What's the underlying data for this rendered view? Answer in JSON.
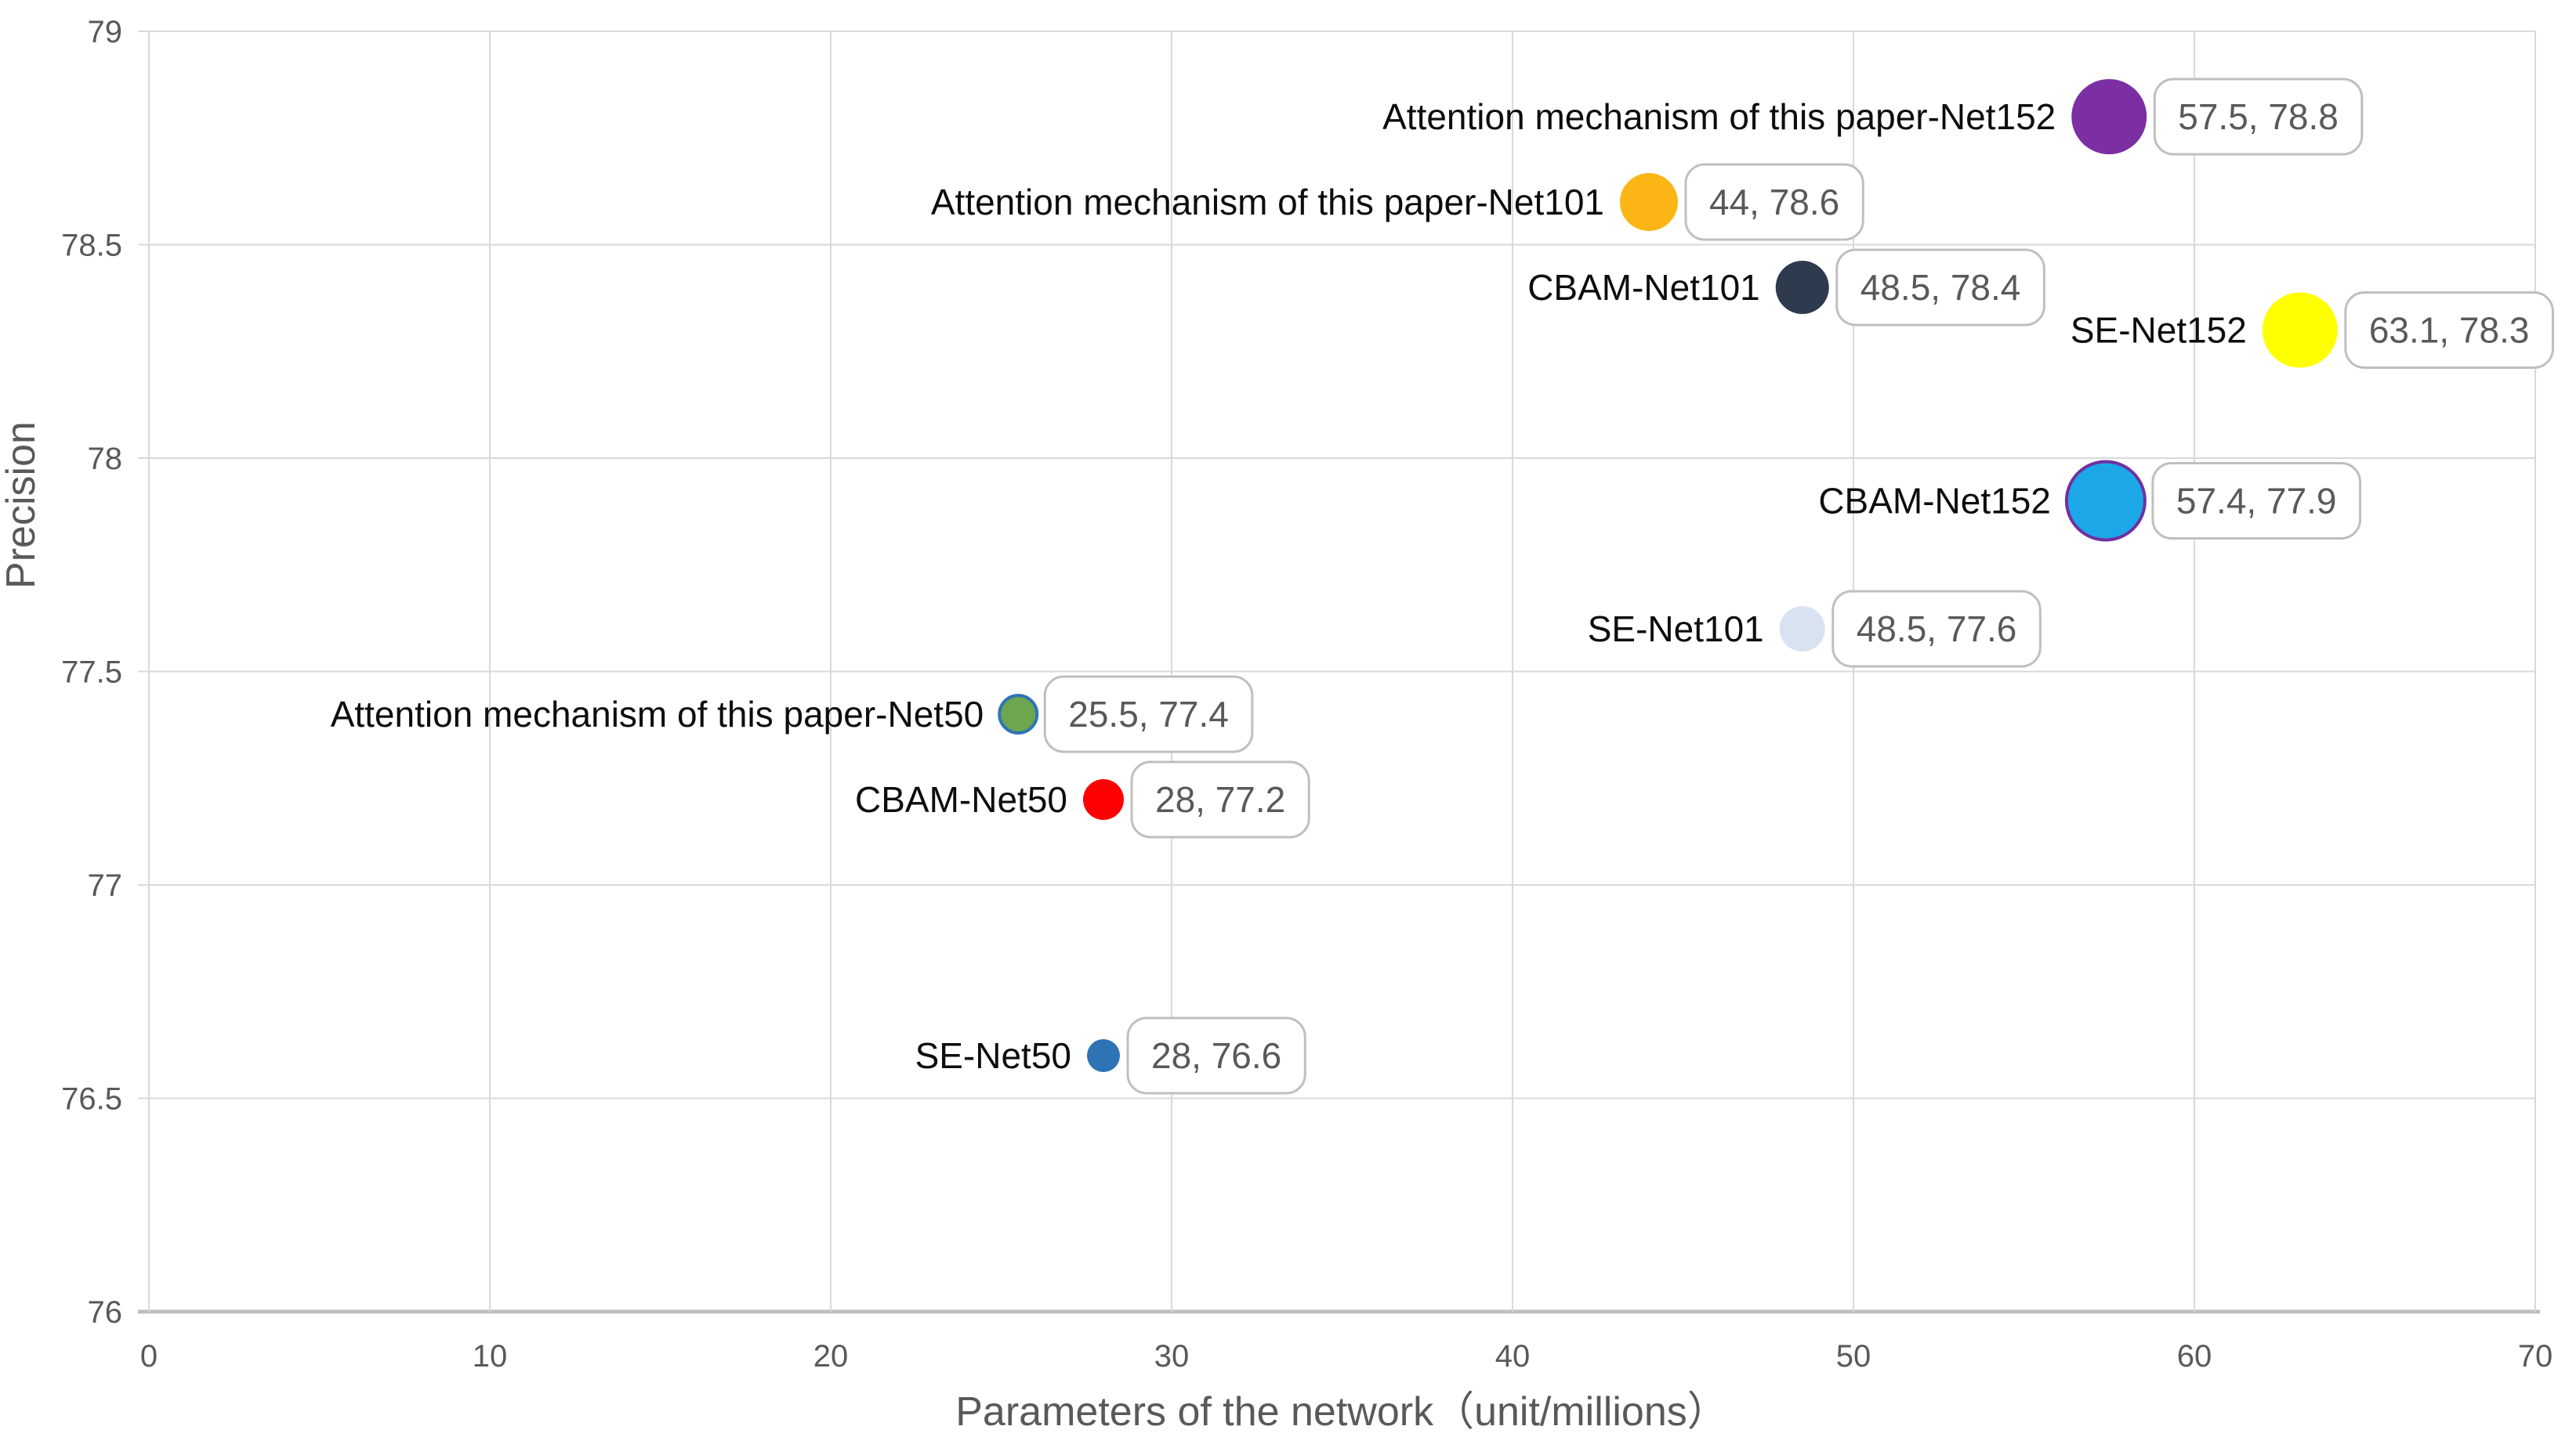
{
  "chart_data": {
    "type": "scatter",
    "title": "",
    "xlabel": "Parameters of the network（unit/millions）",
    "ylabel": "Precision",
    "xlim": [
      0,
      70
    ],
    "ylim": [
      76,
      79
    ],
    "x_ticks": [
      0,
      10,
      20,
      30,
      40,
      50,
      60,
      70
    ],
    "y_ticks": [
      76,
      76.5,
      77,
      77.5,
      78,
      78.5,
      79
    ],
    "grid": true,
    "legend_position": "none (each point labeled directly on plot)",
    "points": [
      {
        "name": "Attention mechanism of this paper-Net152",
        "x": 57.5,
        "y": 78.8,
        "value_label": "57.5, 78.8",
        "color": "#7B2FA3",
        "border_color": "none",
        "radius": 48
      },
      {
        "name": "Attention mechanism of this paper-Net101",
        "x": 44,
        "y": 78.6,
        "value_label": "44, 78.6",
        "color": "#FBB616",
        "border_color": "none",
        "radius": 37
      },
      {
        "name": "CBAM-Net101",
        "x": 48.5,
        "y": 78.4,
        "value_label": "48.5, 78.4",
        "color": "#2E3A4D",
        "border_color": "none",
        "radius": 34
      },
      {
        "name": "SE-Net152",
        "x": 63.1,
        "y": 78.3,
        "value_label": "63.1, 78.3",
        "color": "#FFFF00",
        "border_color": "none",
        "radius": 48
      },
      {
        "name": "CBAM-Net152",
        "x": 57.4,
        "y": 77.9,
        "value_label": "57.4, 77.9",
        "color": "#1CA8E8",
        "border_color": "#7030A0",
        "radius": 50
      },
      {
        "name": "SE-Net101",
        "x": 48.5,
        "y": 77.6,
        "value_label": "48.5, 77.6",
        "color": "#D9E2F0",
        "border_color": "none",
        "radius": 29
      },
      {
        "name": "Attention mechanism of this paper-Net50",
        "x": 25.5,
        "y": 77.4,
        "value_label": "25.5, 77.4",
        "color": "#6CA64E",
        "border_color": "#2E75B6",
        "radius": 24
      },
      {
        "name": "CBAM-Net50",
        "x": 28,
        "y": 77.2,
        "value_label": "28, 77.2",
        "color": "#FE0000",
        "border_color": "none",
        "radius": 26
      },
      {
        "name": "SE-Net50",
        "x": 28,
        "y": 76.6,
        "value_label": "28, 76.6",
        "color": "#2E74B5",
        "border_color": "none",
        "radius": 21
      }
    ],
    "colors": {
      "background": "#FFFFFF",
      "gridline": "#D9D9D9",
      "axis_line": "#BFBFBF",
      "tick_text": "#595959",
      "axis_title_text": "#595959",
      "point_name_text": "#0D0D0D",
      "value_text": "#595959",
      "callout_fill": "#FFFFFF",
      "callout_border": "#BFBFBF"
    }
  }
}
